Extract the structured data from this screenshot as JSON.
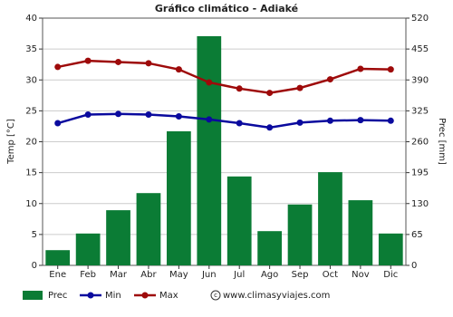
{
  "chart_data": {
    "type": "combo",
    "title": "Gráfico climático - Adiaké",
    "y_label": "Temp [°C]",
    "y2_label": "Prec [mm]",
    "categories": [
      "Ene",
      "Feb",
      "Mar",
      "Abr",
      "May",
      "Jun",
      "Jul",
      "Ago",
      "Sep",
      "Oct",
      "Nov",
      "Dic"
    ],
    "series": [
      {
        "name": "Prec",
        "kind": "bar",
        "axis": "y2",
        "color": "#0b7c35",
        "values": [
          32,
          67,
          116,
          152,
          282,
          482,
          187,
          72,
          128,
          196,
          137,
          67
        ]
      },
      {
        "name": "Min",
        "kind": "line",
        "color": "#0a0a9e",
        "values": [
          23.0,
          24.4,
          24.5,
          24.4,
          24.1,
          23.6,
          23.0,
          22.3,
          23.1,
          23.4,
          23.5,
          23.4
        ]
      },
      {
        "name": "Max",
        "kind": "line",
        "color": "#9e0a0a",
        "values": [
          32.1,
          33.1,
          32.9,
          32.7,
          31.7,
          29.6,
          28.6,
          27.9,
          28.7,
          30.1,
          31.8,
          31.7
        ]
      }
    ],
    "ylim": [
      0,
      40
    ],
    "yticks": [
      0,
      5,
      10,
      15,
      20,
      25,
      30,
      35,
      40
    ],
    "y2lim": [
      0,
      520
    ],
    "y2ticks": [
      0,
      65,
      130,
      195,
      260,
      325,
      390,
      455,
      520
    ],
    "grid": true,
    "legend": "bottom",
    "credit": "www.climasyviajes.com"
  }
}
